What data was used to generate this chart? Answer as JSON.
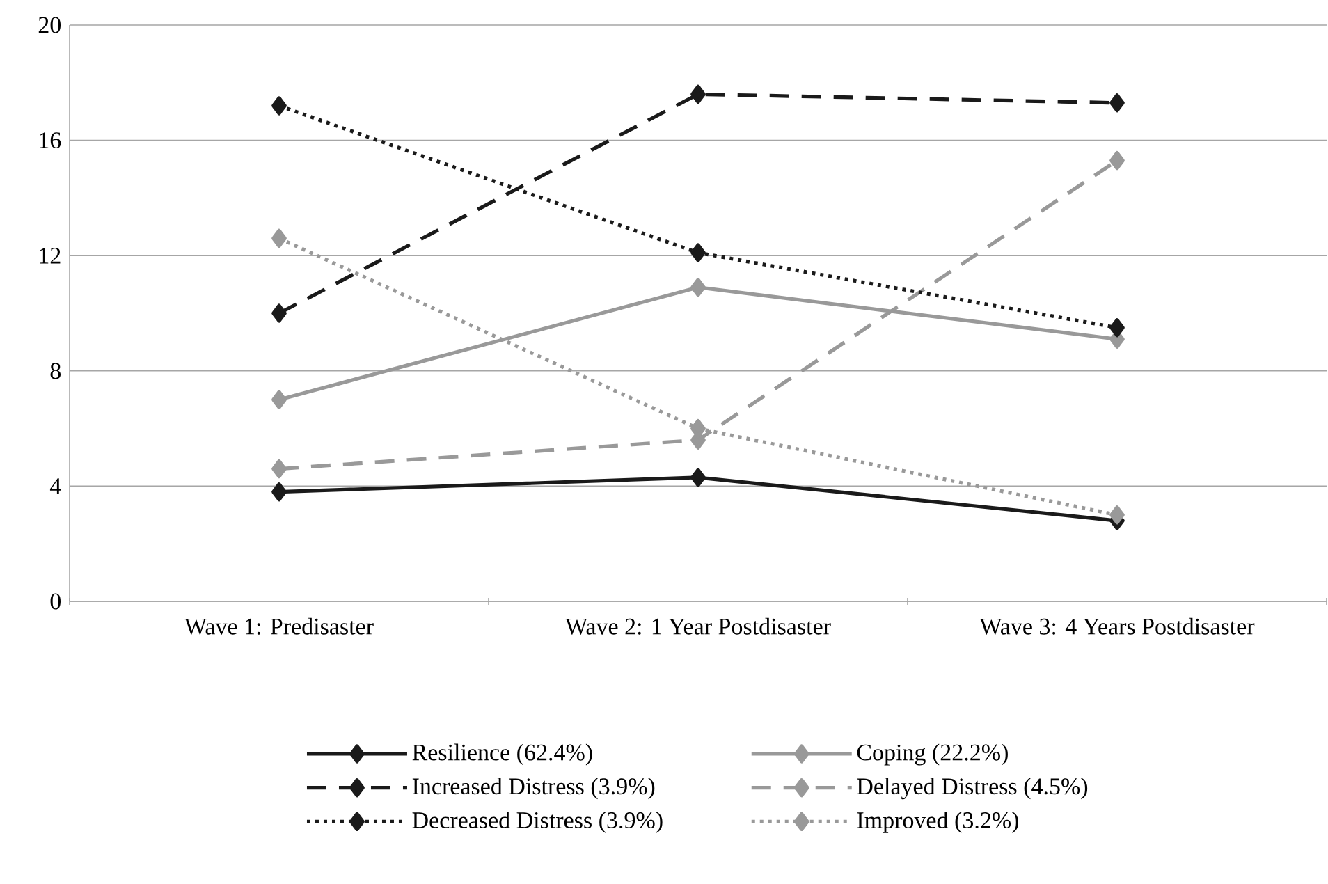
{
  "chart_data": {
    "type": "line",
    "categories": [
      "Wave 1: Predisaster",
      "Wave 2: 1 Year Postdisaster",
      "Wave 3: 4 Years Postdisaster"
    ],
    "series": [
      {
        "name": "Resilience (62.4%)",
        "color": "#1a1a1a",
        "line_style": "solid",
        "values": [
          3.8,
          4.3,
          2.8
        ]
      },
      {
        "name": "Coping (22.2%)",
        "color": "#999999",
        "line_style": "solid",
        "values": [
          7.0,
          10.9,
          9.1
        ]
      },
      {
        "name": "Increased Distress (3.9%)",
        "color": "#1a1a1a",
        "line_style": "dashed",
        "values": [
          10.0,
          17.6,
          17.3
        ]
      },
      {
        "name": "Delayed Distress (4.5%)",
        "color": "#999999",
        "line_style": "dashed",
        "values": [
          4.6,
          5.6,
          15.3
        ]
      },
      {
        "name": "Decreased Distress (3.9%)",
        "color": "#1a1a1a",
        "line_style": "dotted",
        "values": [
          17.2,
          12.1,
          9.5
        ]
      },
      {
        "name": "Improved (3.2%)",
        "color": "#999999",
        "line_style": "dotted",
        "values": [
          12.6,
          6.0,
          3.0
        ]
      }
    ],
    "ylim": [
      0,
      20
    ],
    "yticks": [
      0,
      4,
      8,
      12,
      16,
      20
    ],
    "grid": "y",
    "legend": "bottom",
    "marker": "diamond"
  }
}
